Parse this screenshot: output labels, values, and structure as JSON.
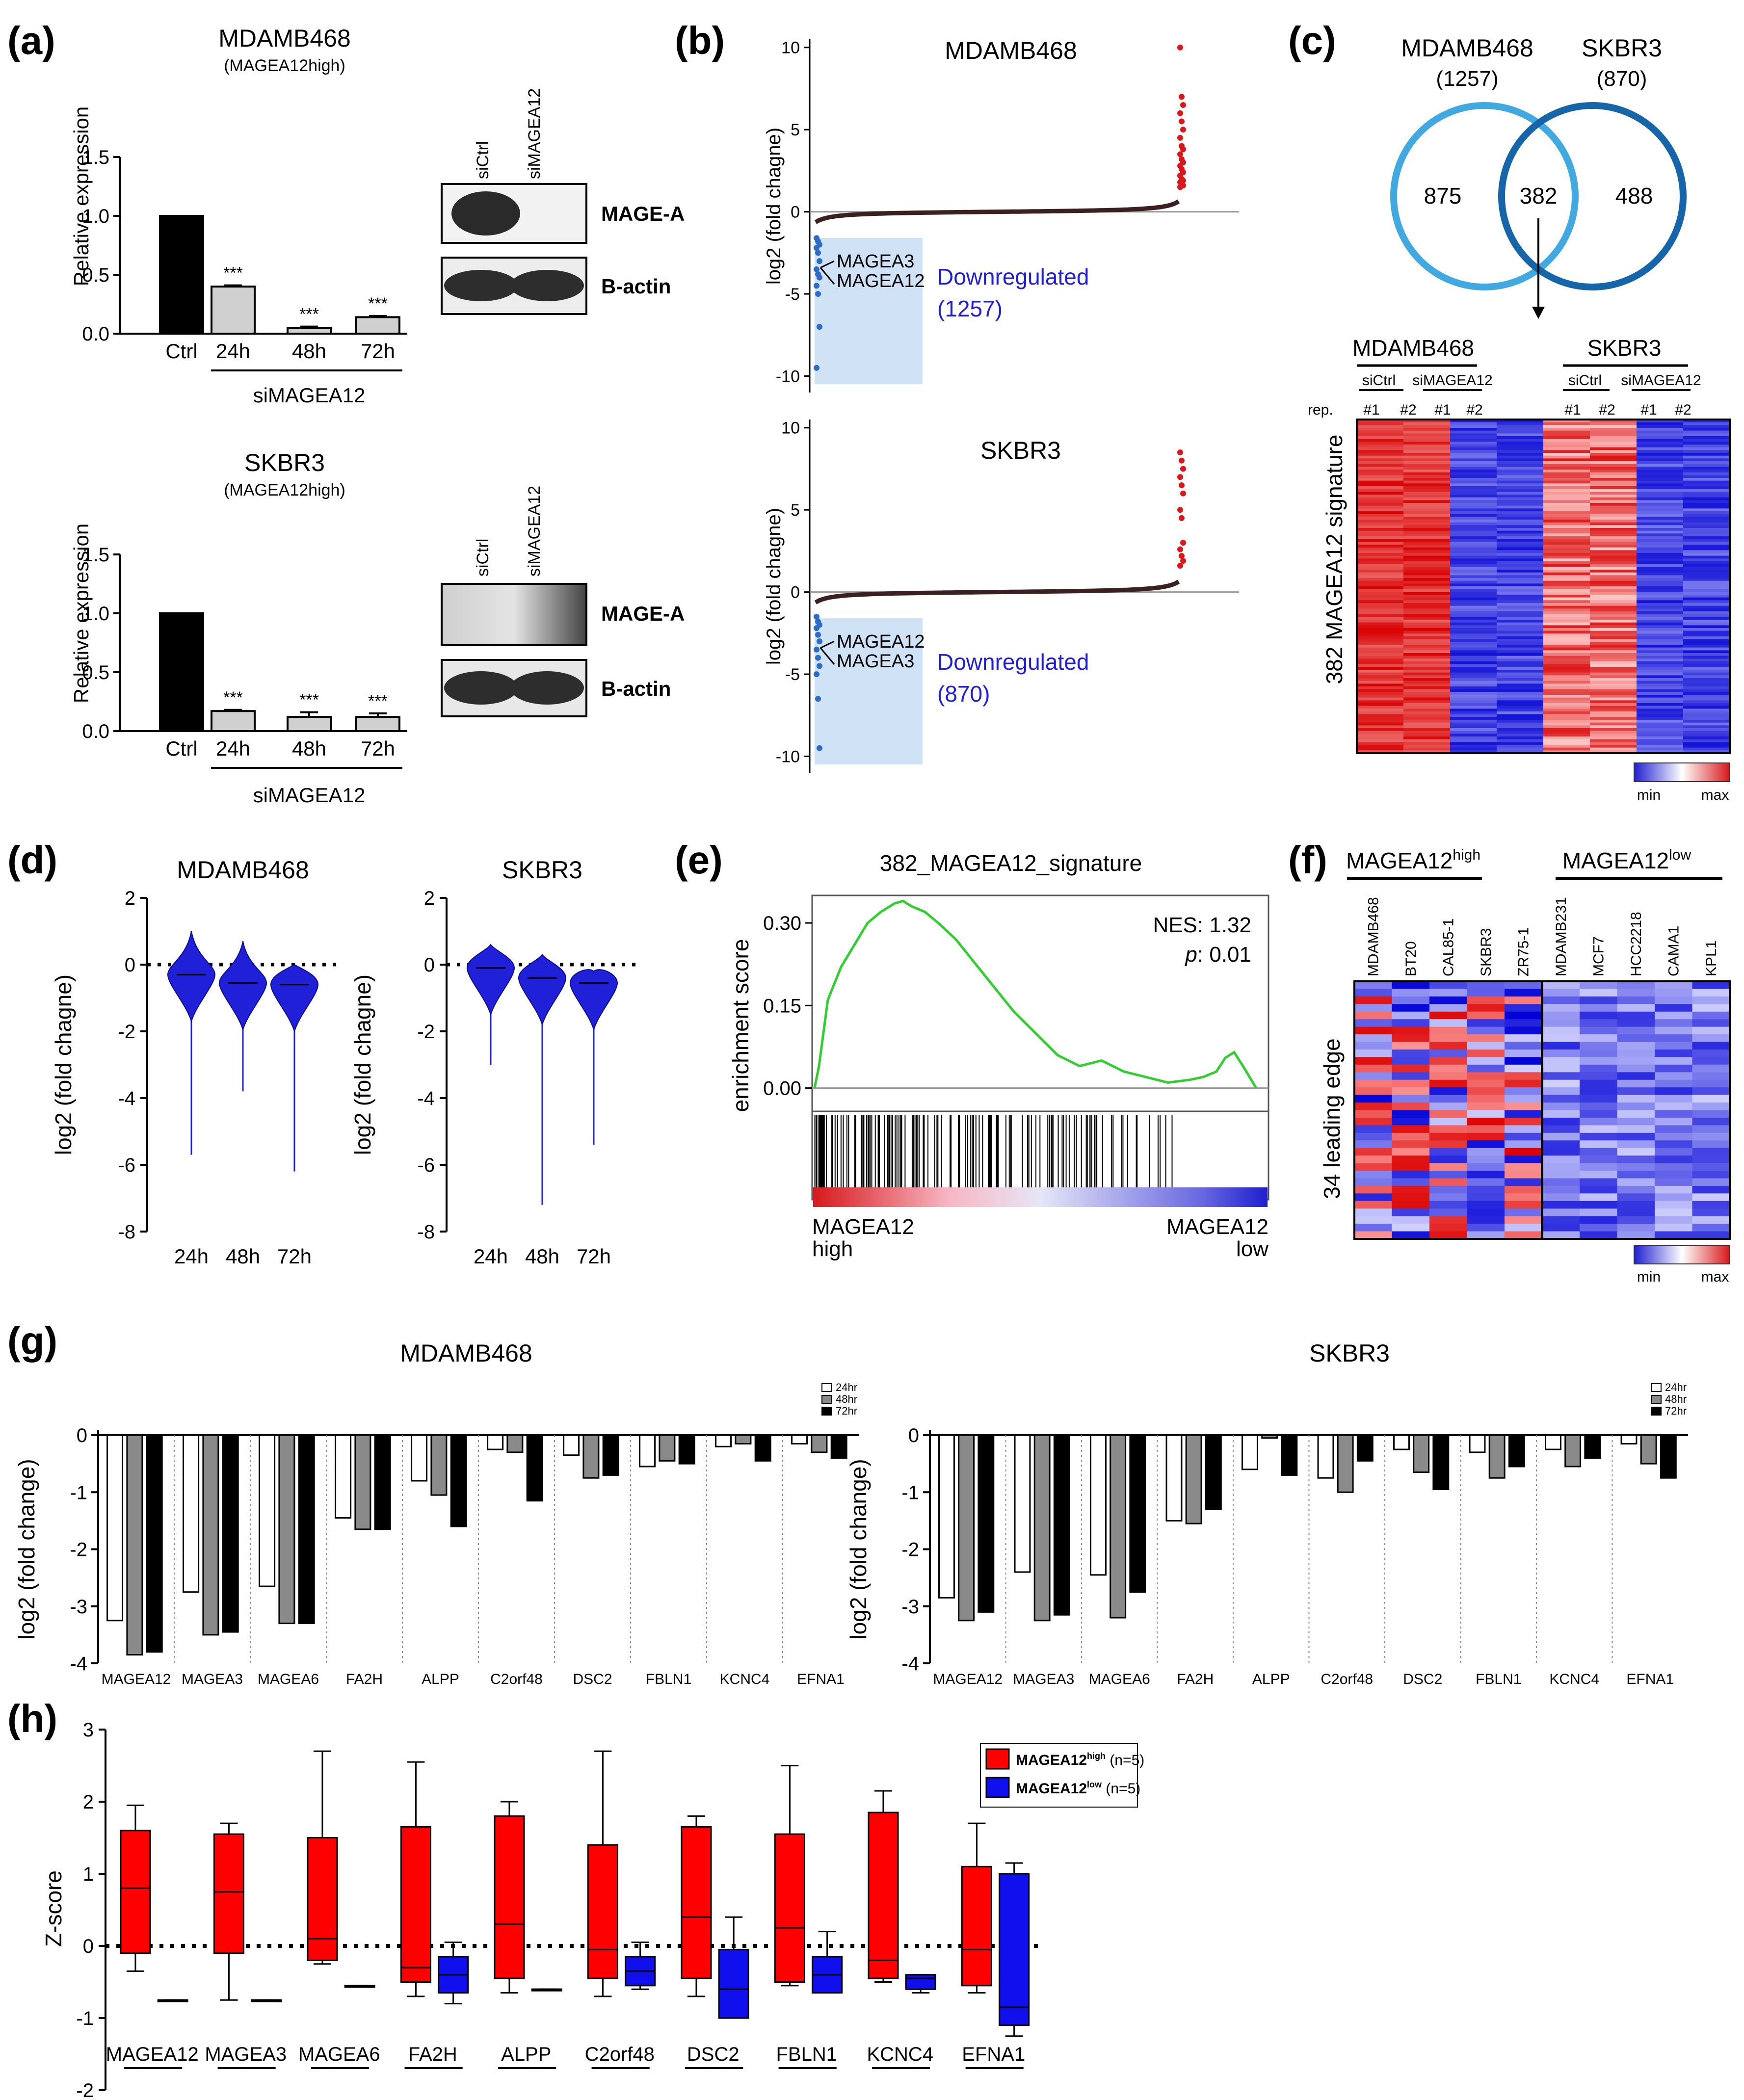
{
  "panel_letters": [
    "(a)",
    "(b)",
    "(c)",
    "(d)",
    "(e)",
    "(f)",
    "(g)",
    "(h)"
  ],
  "colors": {
    "red": "#d7191c",
    "blue": "#1f1fd0",
    "light_blue_box": "#cfe2f6",
    "green": "#33cc33",
    "venn_left": "#41a9e0",
    "venn_right": "#1565a8",
    "grey_bar": "#d0d0d0",
    "dark_grey_bar": "#8a8a8a"
  },
  "a": {
    "plots": [
      {
        "title": "MDAMB468",
        "subtitle": "(MAGEA12high)"
      },
      {
        "title": "SKBR3",
        "subtitle": "(MAGEA12high)"
      }
    ],
    "ylabel": "Relative expression",
    "group_label": "siMAGEA12",
    "sig": "***",
    "blots": [
      {
        "lanes": [
          "siCtrl",
          "siMAGEA12"
        ],
        "bands": [
          "MAGE-A",
          "B-actin"
        ]
      },
      {
        "lanes": [
          "siCtrl",
          "siMAGEA12"
        ],
        "bands": [
          "MAGE-A",
          "B-actin"
        ]
      }
    ]
  },
  "b": {
    "ylabel": "log2 (fold chagne)",
    "plots": [
      {
        "title": "MDAMB468",
        "genes": [
          "MAGEA3",
          "MAGEA12"
        ],
        "down_label": "Downregulated",
        "down_count": "(1257)"
      },
      {
        "title": "SKBR3",
        "genes": [
          "MAGEA12",
          "MAGEA3"
        ],
        "down_label": "Downregulated",
        "down_count": "(870)"
      }
    ]
  },
  "c": {
    "venn": {
      "left_name": "MDAMB468",
      "left_total": "(1257)",
      "right_name": "SKBR3",
      "right_total": "(870)",
      "left_only": "875",
      "overlap": "382",
      "right_only": "488"
    },
    "heatmap": {
      "groups": [
        "MDAMB468",
        "SKBR3"
      ],
      "conditions": [
        "siCtrl",
        "siMAGEA12",
        "siCtrl",
        "siMAGEA12"
      ],
      "rep_label": "rep.",
      "reps": [
        "#1",
        "#2",
        "#1",
        "#2",
        "#1",
        "#2",
        "#1",
        "#2"
      ],
      "row_label": "382 MAGEA12 signature"
    },
    "legend": {
      "min": "min",
      "max": "max"
    }
  },
  "f": {
    "group_high": "MAGEA12",
    "group_high_sup": "high",
    "group_low": "MAGEA12",
    "group_low_sup": "low",
    "samples": [
      "MDAMB468",
      "BT20",
      "CAL85-1",
      "SKBR3",
      "ZR75-1",
      "MDAMB231",
      "MCF7",
      "HCC2218",
      "CAMA1",
      "KPL1"
    ],
    "row_label": "34 leading edge",
    "legend": {
      "min": "min",
      "max": "max"
    }
  },
  "chart_data": [
    {
      "id": "a-top",
      "type": "bar",
      "title": "MDAMB468",
      "ylabel": "Relative expression",
      "categories": [
        "Ctrl",
        "24h",
        "48h",
        "72h"
      ],
      "values": [
        1.0,
        0.4,
        0.05,
        0.14
      ],
      "errors": [
        0,
        0.01,
        0.01,
        0.01
      ],
      "ylim": [
        0,
        1.5
      ],
      "yticks": [
        "0.0",
        "0.5",
        "1.0",
        "1.5"
      ]
    },
    {
      "id": "a-bottom",
      "type": "bar",
      "title": "SKBR3",
      "ylabel": "Relative expression",
      "categories": [
        "Ctrl",
        "24h",
        "48h",
        "72h"
      ],
      "values": [
        1.0,
        0.17,
        0.12,
        0.12
      ],
      "errors": [
        0,
        0.01,
        0.04,
        0.03
      ],
      "ylim": [
        0,
        1.5
      ],
      "yticks": [
        "0.0",
        "0.5",
        "1.0",
        "1.5"
      ]
    },
    {
      "id": "b-top",
      "type": "scatter",
      "title": "MDAMB468",
      "ylabel": "log2 (fold chagne)",
      "ylim": [
        -11,
        10.5
      ],
      "yticks": [
        "10",
        "5",
        "0",
        "-5",
        "-10"
      ],
      "red_points": [
        10,
        7,
        6.5,
        6,
        5.5,
        5,
        4.5,
        4,
        3.8,
        3.5,
        3.2,
        3,
        2.8,
        2.6,
        2.4,
        2.2,
        2,
        1.9,
        1.8,
        1.7,
        1.6,
        1.5
      ],
      "blue_points": [
        -1.6,
        -1.8,
        -2,
        -2.2,
        -2.5,
        -3,
        -3.5,
        -3.8,
        -4,
        -4.5,
        -5,
        -7,
        -9.5
      ]
    },
    {
      "id": "b-bottom",
      "type": "scatter",
      "title": "SKBR3",
      "ylabel": "log2 (fold chagne)",
      "ylim": [
        -11,
        10.5
      ],
      "yticks": [
        "10",
        "5",
        "0",
        "-5",
        "-10"
      ],
      "red_points": [
        8.5,
        8,
        7.5,
        7,
        6.5,
        6,
        5,
        4.5,
        3,
        2.6,
        2.2,
        1.9,
        1.6
      ],
      "blue_points": [
        -1.5,
        -1.8,
        -2,
        -2.2,
        -2.6,
        -3,
        -3.5,
        -4,
        -4.5,
        -5,
        -6.5,
        -9.5
      ]
    },
    {
      "id": "d-left",
      "type": "violin",
      "title": "MDAMB468",
      "ylabel": "log2 (fold chagne)",
      "ylim": [
        -8,
        2
      ],
      "yticks": [
        "2",
        "0",
        "-2",
        "-4",
        "-6",
        "-8"
      ],
      "categories": [
        "24h",
        "48h",
        "72h"
      ],
      "median": [
        -0.3,
        -0.55,
        -0.6
      ],
      "max": [
        1.0,
        0.7,
        0.0
      ],
      "min": [
        -5.7,
        -3.8,
        -6.2
      ]
    },
    {
      "id": "d-right",
      "type": "violin",
      "title": "SKBR3",
      "ylabel": "log2 (fold chagne)",
      "ylim": [
        -8,
        2
      ],
      "yticks": [
        "2",
        "0",
        "-2",
        "-4",
        "-6",
        "-8"
      ],
      "categories": [
        "24h",
        "48h",
        "72h"
      ],
      "median": [
        -0.1,
        -0.4,
        -0.55
      ],
      "max": [
        0.6,
        0.3,
        -0.2
      ],
      "min": [
        -3.0,
        -7.2,
        -5.4
      ]
    },
    {
      "id": "e",
      "type": "line",
      "title": "382_MAGEA12_signature",
      "ylabel": "enrichment score",
      "ylim": [
        -0.02,
        0.35
      ],
      "yticks": [
        "0.00",
        "0.15",
        "0.30"
      ],
      "nes": "NES: 1.32",
      "p_label": "p",
      "p_value": ": 0.01",
      "x_left_top": "MAGEA12",
      "x_left_bottom": "high",
      "x_right_top": "MAGEA12",
      "x_right_bottom": "low",
      "x": [
        0,
        0.01,
        0.03,
        0.06,
        0.09,
        0.12,
        0.15,
        0.18,
        0.2,
        0.22,
        0.25,
        0.28,
        0.32,
        0.36,
        0.4,
        0.45,
        0.5,
        0.55,
        0.6,
        0.65,
        0.7,
        0.75,
        0.8,
        0.85,
        0.88,
        0.91,
        0.93,
        0.95,
        0.97,
        1.0
      ],
      "y": [
        0,
        0.04,
        0.16,
        0.22,
        0.26,
        0.3,
        0.32,
        0.335,
        0.34,
        0.33,
        0.32,
        0.3,
        0.27,
        0.23,
        0.19,
        0.14,
        0.1,
        0.06,
        0.04,
        0.05,
        0.03,
        0.02,
        0.01,
        0.015,
        0.02,
        0.03,
        0.055,
        0.065,
        0.04,
        0.0
      ]
    },
    {
      "id": "g-left",
      "type": "bar",
      "title": "MDAMB468",
      "ylabel": "log2 (fold change)",
      "ylim": [
        -4,
        0
      ],
      "yticks": [
        "0",
        "-1",
        "-2",
        "-3",
        "-4"
      ],
      "categories": [
        "MAGEA12",
        "MAGEA3",
        "MAGEA6",
        "FA2H",
        "ALPP",
        "C2orf48",
        "DSC2",
        "FBLN1",
        "KCNC4",
        "EFNA1"
      ],
      "series": [
        {
          "name": "24hr",
          "values": [
            -3.25,
            -2.75,
            -2.65,
            -1.45,
            -0.8,
            -0.25,
            -0.35,
            -0.55,
            -0.2,
            -0.15
          ]
        },
        {
          "name": "48hr",
          "values": [
            -3.85,
            -3.5,
            -3.3,
            -1.65,
            -1.05,
            -0.3,
            -0.75,
            -0.45,
            -0.15,
            -0.3
          ]
        },
        {
          "name": "72hr",
          "values": [
            -3.8,
            -3.45,
            -3.3,
            -1.65,
            -1.6,
            -1.15,
            -0.7,
            -0.5,
            -0.45,
            -0.4
          ]
        }
      ]
    },
    {
      "id": "g-right",
      "type": "bar",
      "title": "SKBR3",
      "ylabel": "log2 (fold change)",
      "ylim": [
        -4,
        0
      ],
      "yticks": [
        "0",
        "-1",
        "-2",
        "-3",
        "-4"
      ],
      "categories": [
        "MAGEA12",
        "MAGEA3",
        "MAGEA6",
        "FA2H",
        "ALPP",
        "C2orf48",
        "DSC2",
        "FBLN1",
        "KCNC4",
        "EFNA1"
      ],
      "series": [
        {
          "name": "24hr",
          "values": [
            -2.85,
            -2.4,
            -2.45,
            -1.5,
            -0.6,
            -0.75,
            -0.25,
            -0.3,
            -0.25,
            -0.15
          ]
        },
        {
          "name": "48hr",
          "values": [
            -3.25,
            -3.25,
            -3.2,
            -1.55,
            -0.05,
            -1.0,
            -0.65,
            -0.75,
            -0.55,
            -0.5
          ]
        },
        {
          "name": "72hr",
          "values": [
            -3.1,
            -3.15,
            -2.75,
            -1.3,
            -0.7,
            -0.45,
            -0.95,
            -0.55,
            -0.4,
            -0.75
          ]
        }
      ]
    },
    {
      "id": "h",
      "type": "box",
      "ylabel": "Z-score",
      "ylim": [
        -2,
        3
      ],
      "yticks": [
        "3",
        "2",
        "1",
        "0",
        "-1",
        "-2"
      ],
      "categories": [
        "MAGEA12",
        "MAGEA3",
        "MAGEA6",
        "FA2H",
        "ALPP",
        "C2orf48",
        "DSC2",
        "FBLN1",
        "KCNC4",
        "EFNA1"
      ],
      "legend": [
        {
          "name": "MAGEA12",
          "sup": "high",
          "n": "(n=5)"
        },
        {
          "name": "MAGEA12",
          "sup": "low",
          "n": "(n=5)"
        }
      ],
      "high": [
        [
          -0.35,
          -0.1,
          0.8,
          1.6,
          1.95
        ],
        [
          -0.75,
          -0.1,
          0.75,
          1.55,
          1.7
        ],
        [
          -0.25,
          -0.2,
          0.1,
          1.5,
          2.7
        ],
        [
          -0.7,
          -0.5,
          -0.3,
          1.65,
          2.55
        ],
        [
          -0.65,
          -0.45,
          0.3,
          1.8,
          2.0
        ],
        [
          -0.7,
          -0.45,
          -0.05,
          1.4,
          2.7
        ],
        [
          -0.7,
          -0.45,
          0.4,
          1.65,
          1.8
        ],
        [
          -0.55,
          -0.5,
          0.25,
          1.55,
          2.5
        ],
        [
          -0.5,
          -0.45,
          -0.2,
          1.85,
          2.15
        ],
        [
          -0.65,
          -0.55,
          -0.05,
          1.1,
          1.7
        ]
      ],
      "low": [
        [
          -0.75,
          -0.75,
          -0.75,
          -0.75,
          -0.75
        ],
        [
          -0.75,
          -0.75,
          -0.75,
          -0.75,
          -0.75
        ],
        [
          -0.55,
          -0.55,
          -0.55,
          -0.55,
          -0.55
        ],
        [
          -0.8,
          -0.65,
          -0.4,
          -0.15,
          0.05
        ],
        [
          -0.6,
          -0.6,
          -0.6,
          -0.6,
          -0.6
        ],
        [
          -0.6,
          -0.55,
          -0.35,
          -0.15,
          0.05
        ],
        [
          -1.0,
          -1.0,
          -0.6,
          -0.05,
          0.4
        ],
        [
          -0.65,
          -0.65,
          -0.4,
          -0.15,
          0.2
        ],
        [
          -0.65,
          -0.6,
          -0.45,
          -0.4,
          -0.4
        ],
        [
          -1.25,
          -1.1,
          -0.85,
          1.0,
          1.15
        ]
      ]
    }
  ]
}
